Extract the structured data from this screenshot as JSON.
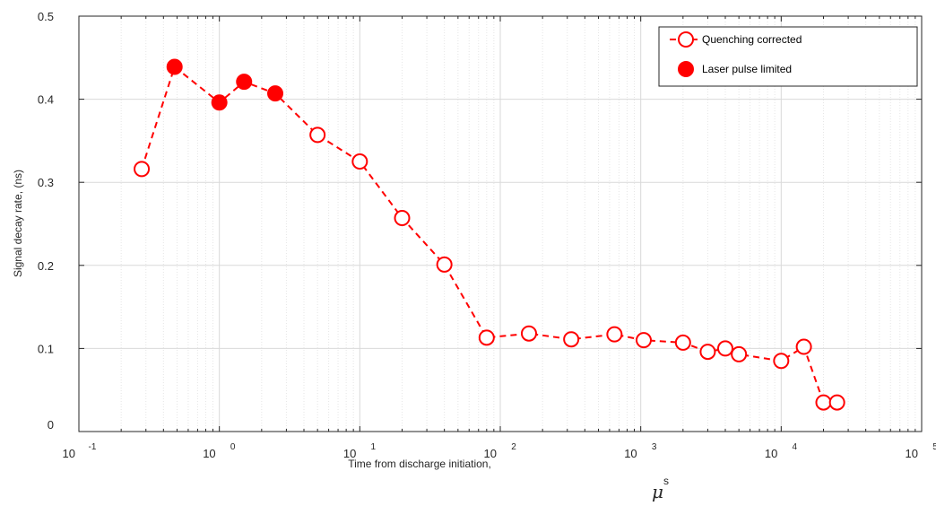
{
  "chart_data": {
    "type": "scatter",
    "xscale": "log",
    "xlim": [
      0.1,
      100000
    ],
    "ylim": [
      0,
      0.5
    ],
    "xticks": [
      {
        "mantissa": "10",
        "exp": "-1",
        "value": 0.1
      },
      {
        "mantissa": "10",
        "exp": "0",
        "value": 1
      },
      {
        "mantissa": "10",
        "exp": "1",
        "value": 10
      },
      {
        "mantissa": "10",
        "exp": "2",
        "value": 100
      },
      {
        "mantissa": "10",
        "exp": "3",
        "value": 1000
      },
      {
        "mantissa": "10",
        "exp": "4",
        "value": 10000
      },
      {
        "mantissa": "10",
        "exp": "5",
        "value": 100000
      }
    ],
    "yticks": [
      {
        "label": "0",
        "value": 0
      },
      {
        "label": "0.1",
        "value": 0.1
      },
      {
        "label": "0.2",
        "value": 0.2
      },
      {
        "label": "0.3",
        "value": 0.3
      },
      {
        "label": "0.4",
        "value": 0.4
      },
      {
        "label": "0.5",
        "value": 0.5
      }
    ],
    "xlabel": "Time from discharge initiation,",
    "xlabel_unit_symbol": "μ",
    "xlabel_unit_letter": "s",
    "ylabel": "Signal decay rate, (ns)",
    "grid": true,
    "legend_position": "top-right",
    "color": "#ff0000",
    "line": {
      "name": "Quenching corrected",
      "style": "dashed",
      "x": [
        0.28,
        0.48,
        1.0,
        1.5,
        2.5,
        5,
        10,
        20,
        40,
        80,
        160,
        320,
        650,
        1050,
        2000,
        3000,
        4000,
        5000,
        10000,
        14500,
        20000,
        25000
      ],
      "y": [
        0.316,
        0.439,
        0.396,
        0.421,
        0.407,
        0.357,
        0.325,
        0.257,
        0.201,
        0.113,
        0.118,
        0.111,
        0.117,
        0.11,
        0.107,
        0.096,
        0.1,
        0.093,
        0.085,
        0.102,
        0.035,
        0.035
      ]
    },
    "series": [
      {
        "name": "Quenching corrected",
        "marker": "open-circle",
        "x": [
          0.28,
          5,
          10,
          20,
          40,
          80,
          160,
          320,
          650,
          1050,
          2000,
          3000,
          4000,
          5000,
          10000,
          14500,
          20000,
          25000
        ],
        "y": [
          0.316,
          0.357,
          0.325,
          0.257,
          0.201,
          0.113,
          0.118,
          0.111,
          0.117,
          0.11,
          0.107,
          0.096,
          0.1,
          0.093,
          0.085,
          0.102,
          0.035,
          0.035
        ]
      },
      {
        "name": "Laser pulse limited",
        "marker": "filled-circle",
        "x": [
          0.48,
          1.0,
          1.5,
          2.5
        ],
        "y": [
          0.439,
          0.396,
          0.421,
          0.407
        ]
      }
    ]
  }
}
